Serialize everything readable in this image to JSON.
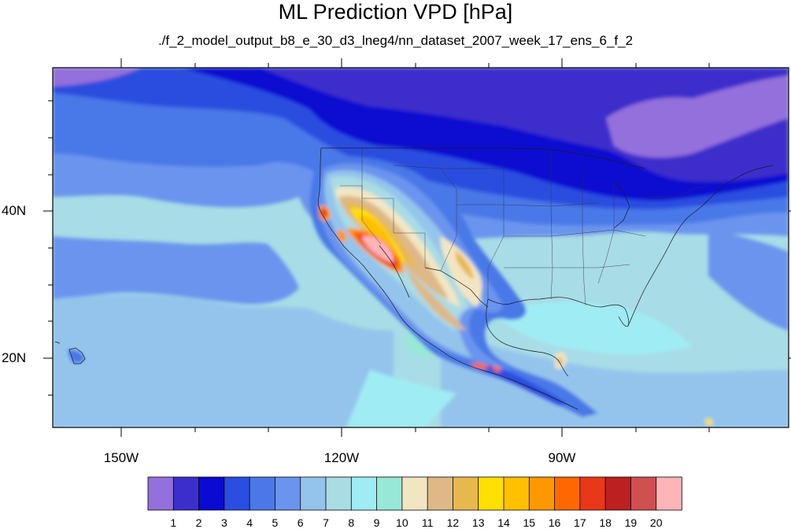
{
  "title": "ML Prediction VPD [hPa]",
  "subtitle": "./f_2_model_output_b8_e_30_d3_lneg4/nn_dataset_2007_week_17_ens_6_f_2",
  "latitude_labels": [
    "40N",
    "20N"
  ],
  "longitude_labels": [
    "150W",
    "120W",
    "90W"
  ],
  "colorbar": {
    "labels": [
      "1",
      "2",
      "3",
      "4",
      "5",
      "6",
      "7",
      "8",
      "9",
      "10",
      "11",
      "12",
      "13",
      "14",
      "15",
      "16",
      "17",
      "18",
      "19",
      "20"
    ],
    "colors": [
      "#9470dc",
      "#3c2ecc",
      "#0a0ad2",
      "#2a4ee0",
      "#4a78e8",
      "#6a94ee",
      "#94c4ec",
      "#aadce4",
      "#a0ecf4",
      "#98e8d8",
      "#f2e6c2",
      "#deb888",
      "#e8b850",
      "#ffe000",
      "#ffc000",
      "#ff9800",
      "#ff6800",
      "#e83818",
      "#bc2020",
      "#d05050",
      "#ffb4b8"
    ]
  },
  "map_domain": {
    "lon_range": [
      -160,
      -60
    ],
    "lat_range": [
      10,
      59
    ],
    "projection": "cylindrical equidistant"
  }
}
